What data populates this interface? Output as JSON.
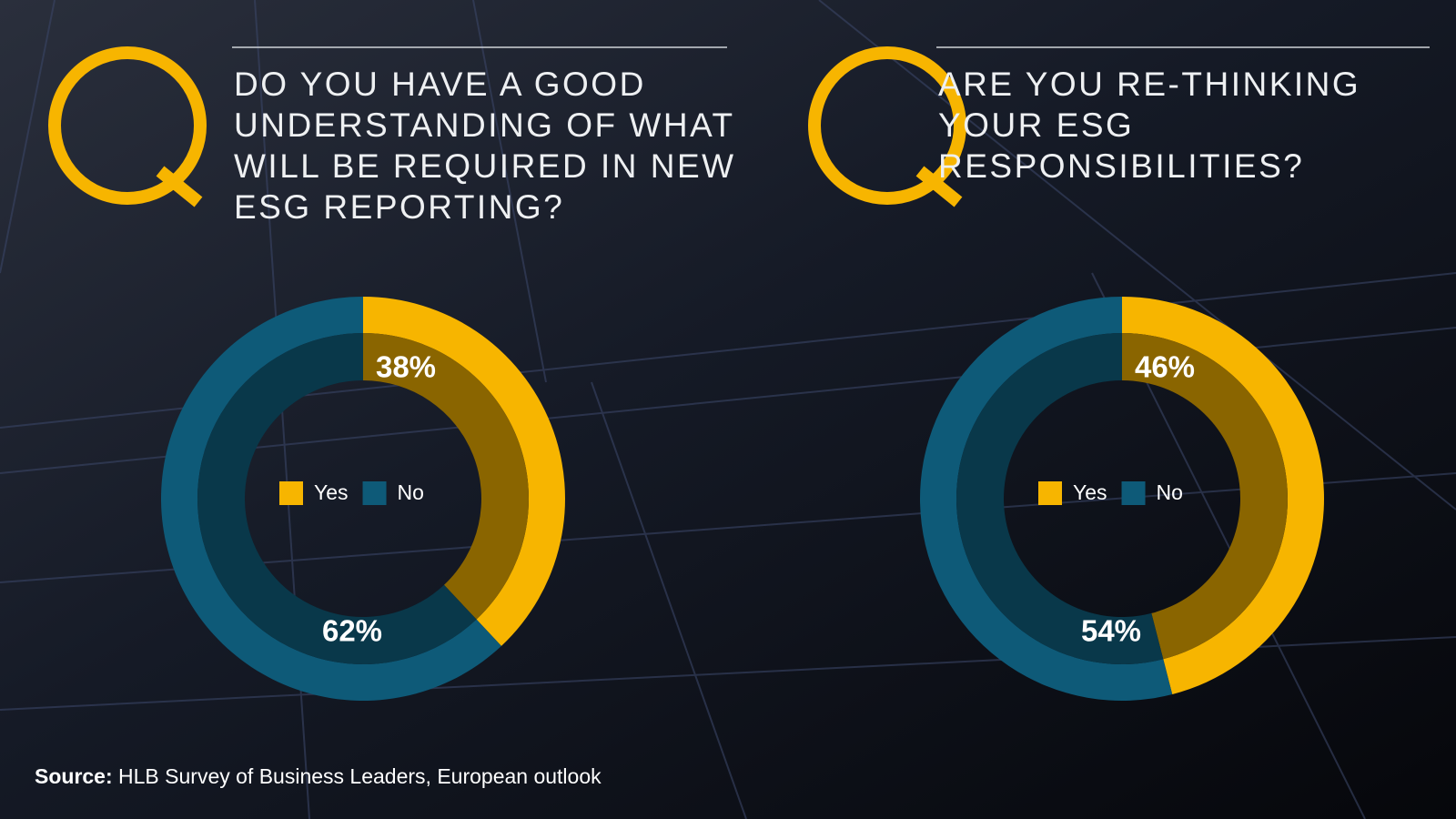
{
  "chart_data": [
    {
      "type": "donut",
      "title": "DO YOU HAVE A GOOD UNDERSTANDING OF WHAT WILL BE REQUIRED IN NEW ESG REPORTING?",
      "categories": [
        "Yes",
        "No"
      ],
      "values": [
        38,
        62
      ],
      "value_labels": [
        "38%",
        "62%"
      ],
      "colors": [
        "#f7b500",
        "#0e5a78"
      ]
    },
    {
      "type": "donut",
      "title": "ARE YOU RE-THINKING YOUR ESG RESPONSIBILITIES?",
      "categories": [
        "Yes",
        "No"
      ],
      "values": [
        46,
        54
      ],
      "value_labels": [
        "46%",
        "54%"
      ],
      "colors": [
        "#f7b500",
        "#0e5a78"
      ]
    }
  ],
  "source": {
    "label": "Source:",
    "text": "HLB Survey of Business Leaders, European outlook"
  }
}
